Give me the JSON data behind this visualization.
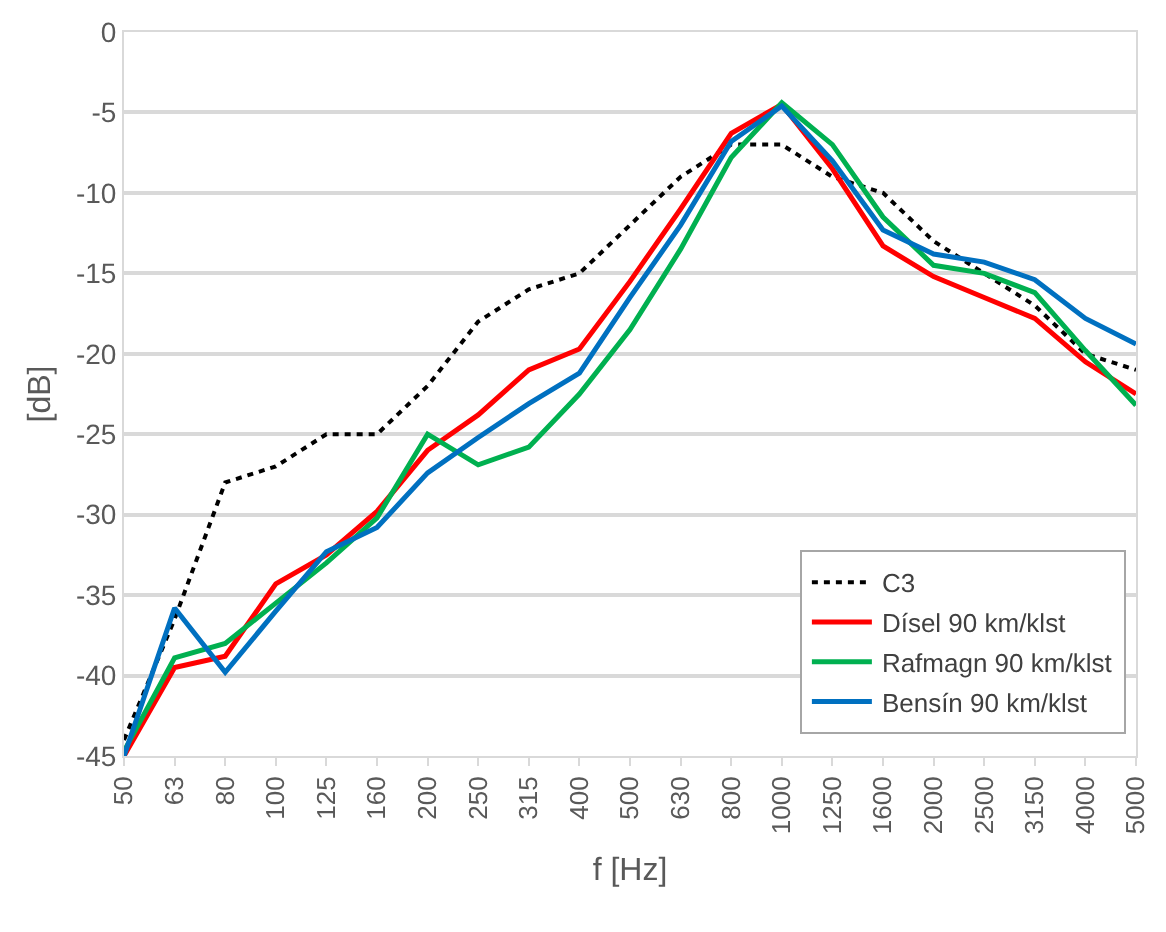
{
  "chart_data": {
    "type": "line",
    "xlabel": "f [Hz]",
    "ylabel": "[dB]",
    "categories": [
      "50",
      "63",
      "80",
      "100",
      "125",
      "160",
      "200",
      "250",
      "315",
      "400",
      "500",
      "630",
      "800",
      "1000",
      "1250",
      "1600",
      "2000",
      "2500",
      "3150",
      "4000",
      "5000"
    ],
    "series": [
      {
        "name": "C3",
        "color": "#000000",
        "line_style": "dotted",
        "values": [
          -44,
          -36.5,
          -28,
          -27,
          -25,
          -25,
          -22,
          -18,
          -16,
          -15,
          -12,
          -9,
          -7,
          -7,
          -9,
          -10,
          -13,
          -15,
          -17,
          -20,
          -21
        ]
      },
      {
        "name": "Dísel 90 km/klst",
        "color": "#ff0000",
        "line_style": "solid",
        "values": [
          -45,
          -39.5,
          -38.8,
          -34.3,
          -32.5,
          -29.8,
          -26,
          -23.8,
          -21,
          -19.7,
          -15.5,
          -11,
          -6.3,
          -4.5,
          -8.5,
          -13.3,
          -15.2,
          -16.5,
          -17.8,
          -20.5,
          -22.5
        ]
      },
      {
        "name": "Rafmagn 90 km/klst",
        "color": "#00b050",
        "line_style": "solid",
        "values": [
          -44.7,
          -38.9,
          -38,
          -35.5,
          -33,
          -30.2,
          -25,
          -26.9,
          -25.8,
          -22.5,
          -18.5,
          -13.5,
          -7.8,
          -4.4,
          -7,
          -11.5,
          -14.5,
          -15,
          -16.2,
          -19.8,
          -23.2
        ]
      },
      {
        "name": "Bensín 90 km/klst",
        "color": "#0070c0",
        "line_style": "solid",
        "values": [
          -45,
          -35.8,
          -39.8,
          -36,
          -32.3,
          -30.8,
          -27.4,
          -25.2,
          -23.1,
          -21.2,
          -16.5,
          -12,
          -6.8,
          -4.6,
          -8,
          -12.3,
          -13.8,
          -14.3,
          -15.4,
          -17.8,
          -19.4
        ]
      }
    ],
    "ylim": [
      -45,
      0
    ],
    "yticks": [
      -45,
      -40,
      -35,
      -30,
      -25,
      -20,
      -15,
      -10,
      -5,
      0
    ],
    "grid": "y",
    "legend": "bottom right",
    "marker": "none"
  }
}
